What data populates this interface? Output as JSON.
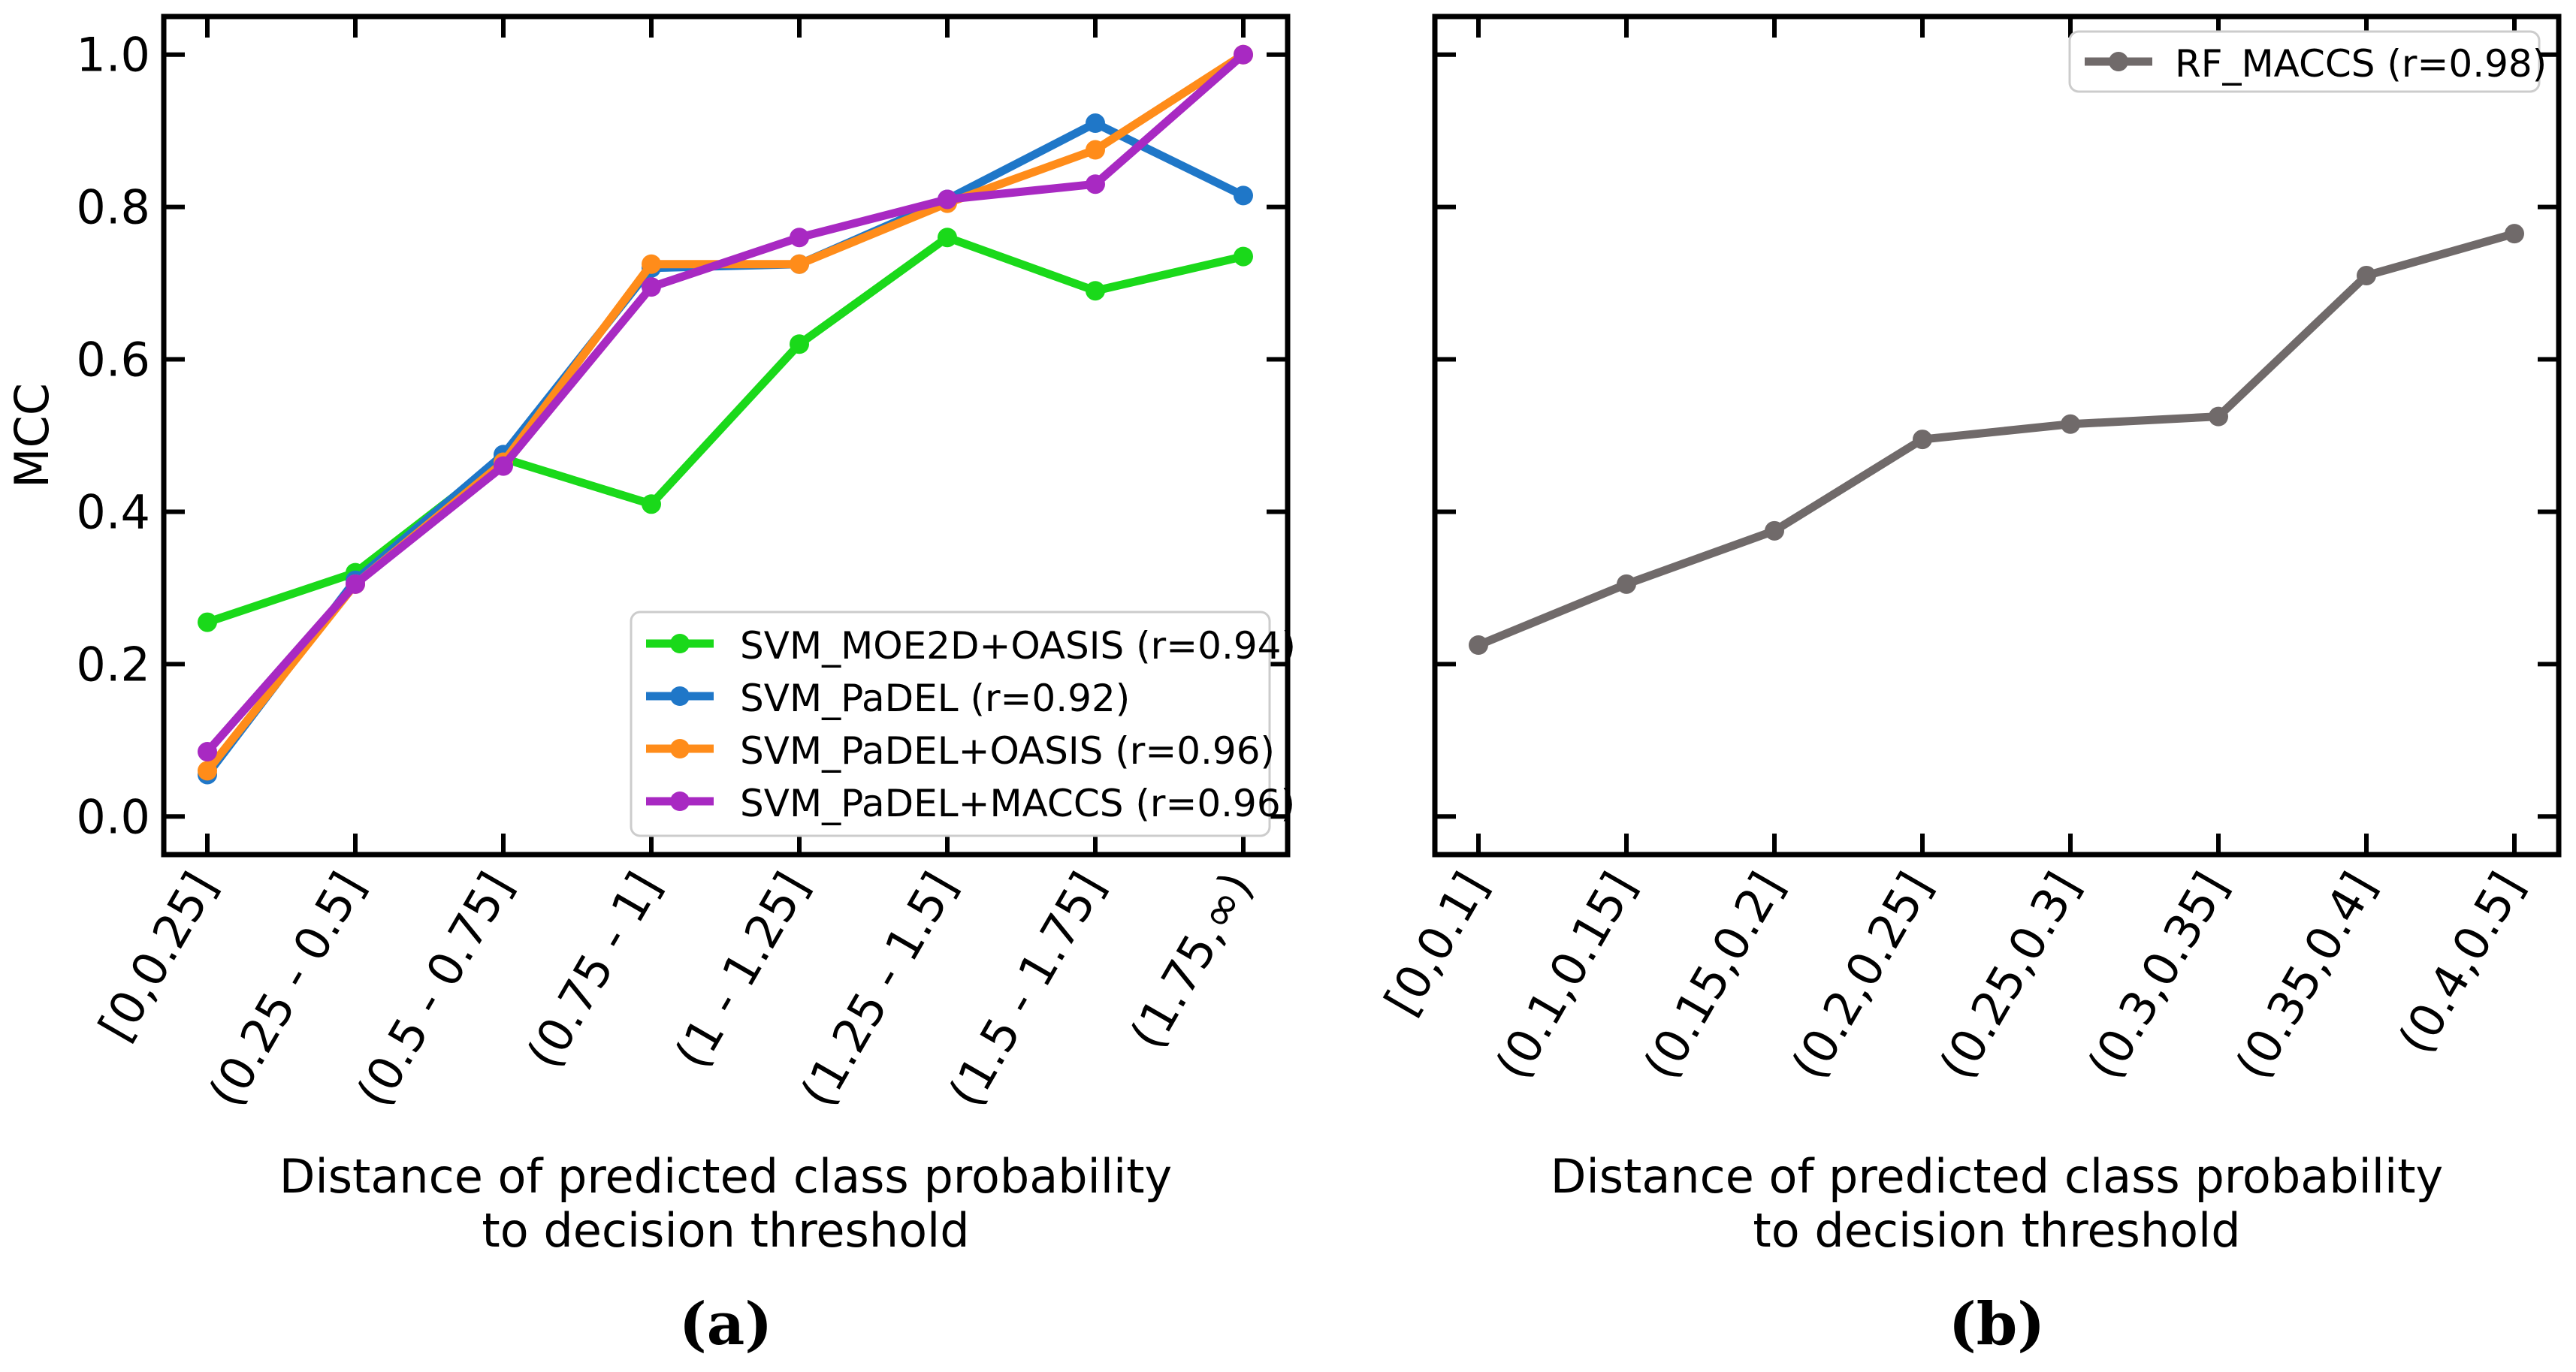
{
  "chart_data": [
    {
      "type": "line",
      "panel_label": "(a)",
      "ylabel": "MCC",
      "xlabel_lines": [
        "Distance of predicted class probability",
        "to decision threshold"
      ],
      "ylim": [
        -0.05,
        1.05
      ],
      "yticks": [
        0.0,
        0.2,
        0.4,
        0.6,
        0.8,
        1.0
      ],
      "ytick_labels": [
        "0.0",
        "0.2",
        "0.4",
        "0.6",
        "0.8",
        "1.0"
      ],
      "show_ytick_labels": true,
      "categories": [
        "[0,0.25]",
        "(0.25 - 0.5]",
        "(0.5 - 0.75]",
        "(0.75 - 1]",
        "(1 - 1.25]",
        "(1.25 - 1.5]",
        "(1.5 - 1.75]",
        "(1.75,∞)"
      ],
      "legend_position": "lower-right",
      "series": [
        {
          "name": "SVM_MOE2D+OASIS (r=0.94)",
          "color": "#1ad91a",
          "values": [
            0.255,
            0.32,
            0.47,
            0.41,
            0.62,
            0.76,
            0.69,
            0.735
          ]
        },
        {
          "name": "SVM_PaDEL (r=0.92)",
          "color": "#1f77c8",
          "values": [
            0.055,
            0.31,
            0.475,
            0.72,
            0.725,
            0.81,
            0.91,
            0.815
          ]
        },
        {
          "name": "SVM_PaDEL+OASIS (r=0.96)",
          "color": "#ff8c1a",
          "values": [
            0.06,
            0.305,
            0.465,
            0.725,
            0.725,
            0.805,
            0.875,
            1.0
          ]
        },
        {
          "name": "SVM_PaDEL+MACCS (r=0.96)",
          "color": "#a829c2",
          "values": [
            0.085,
            0.305,
            0.46,
            0.695,
            0.76,
            0.81,
            0.83,
            1.0
          ]
        }
      ]
    },
    {
      "type": "line",
      "panel_label": "(b)",
      "ylabel": "",
      "xlabel_lines": [
        "Distance of predicted class probability",
        "to decision threshold"
      ],
      "ylim": [
        -0.05,
        1.05
      ],
      "yticks": [
        0.0,
        0.2,
        0.4,
        0.6,
        0.8,
        1.0
      ],
      "ytick_labels": [
        "0.0",
        "0.2",
        "0.4",
        "0.6",
        "0.8",
        "1.0"
      ],
      "show_ytick_labels": false,
      "categories": [
        "[0,0.1]",
        "(0.1,0.15]",
        "(0.15,0.2]",
        "(0.2,0.25]",
        "(0.25,0.3]",
        "(0.3,0.35]",
        "(0.35,0.4]",
        "(0.4,0.5]"
      ],
      "legend_position": "upper-right",
      "series": [
        {
          "name": "RF_MACCS (r=0.98)",
          "color": "#706a6a",
          "values": [
            0.225,
            0.305,
            0.375,
            0.495,
            0.515,
            0.525,
            0.71,
            0.765
          ]
        }
      ]
    }
  ]
}
